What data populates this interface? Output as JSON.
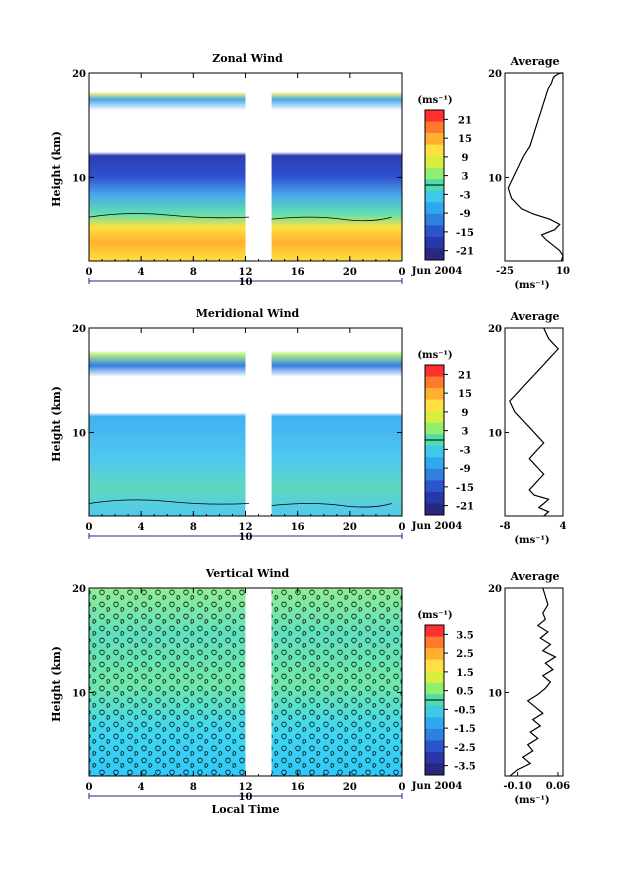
{
  "chart_data": [
    {
      "type": "heatmap",
      "title": "Zonal Wind",
      "ylabel": "Height (km)",
      "ylim": [
        2,
        20
      ],
      "xlim": [
        0,
        24
      ],
      "x_ticks": [
        "0",
        "4",
        "8",
        "12",
        "16",
        "20",
        "0"
      ],
      "y_ticks": [
        "20",
        "10"
      ],
      "date_label": "Jun 2004",
      "day_label": "10",
      "data_gap": [
        12,
        14
      ],
      "colorbar": {
        "unit_label": "(ms⁻¹)",
        "range": [
          -24,
          24
        ],
        "ticks": [
          "21",
          "15",
          "9",
          "3",
          "-3",
          "-9",
          "-15",
          "-21"
        ],
        "colors": [
          "#ff3030",
          "#ff7a2a",
          "#ffb030",
          "#ffe040",
          "#d8ee40",
          "#90ee70",
          "#50dca8",
          "#40c8e8",
          "#30a8f0",
          "#3080e0",
          "#2c54cc",
          "#2838a8",
          "#282880"
        ]
      },
      "profile": {
        "title": "Average",
        "xlim": [
          -25,
          10
        ],
        "x_ticks": [
          "-25",
          "10"
        ],
        "xlabel": "(ms⁻¹)",
        "x": [
          9,
          10,
          8,
          4,
          0,
          -3,
          5,
          8,
          2,
          -8,
          -15,
          -21,
          -23,
          -20,
          -17,
          -14,
          -12,
          -10,
          -9,
          -8,
          -7,
          -6,
          -5,
          -4,
          -3,
          -2,
          -1,
          0,
          1,
          3,
          4,
          5,
          6,
          7,
          8,
          9,
          10
        ],
        "y": [
          2,
          2.5,
          3,
          3.5,
          4,
          4.5,
          5,
          5.5,
          6,
          6.5,
          7,
          8,
          9,
          10,
          11,
          12,
          12.5,
          13,
          13.5,
          14,
          14.5,
          15,
          15.5,
          16,
          16.5,
          17,
          17.5,
          18,
          18.5,
          19,
          19.5,
          19.7,
          19.8,
          19.9,
          19.95,
          20,
          20
        ]
      }
    },
    {
      "type": "heatmap",
      "title": "Meridional Wind",
      "ylabel": "Height (km)",
      "ylim": [
        2,
        20
      ],
      "xlim": [
        0,
        24
      ],
      "x_ticks": [
        "0",
        "4",
        "8",
        "12",
        "16",
        "20",
        "0"
      ],
      "y_ticks": [
        "20",
        "10"
      ],
      "date_label": "Jun 2004",
      "day_label": "10",
      "data_gap": [
        12,
        14
      ],
      "colorbar": {
        "unit_label": "(ms⁻¹)",
        "range": [
          -24,
          24
        ],
        "ticks": [
          "21",
          "15",
          "9",
          "3",
          "-3",
          "-9",
          "-15",
          "-21"
        ],
        "colors": [
          "#ff3030",
          "#ff7a2a",
          "#ffb030",
          "#ffe040",
          "#d8ee40",
          "#90ee70",
          "#50dca8",
          "#40c8e8",
          "#30a8f0",
          "#3080e0",
          "#2c54cc",
          "#2838a8",
          "#282880"
        ]
      },
      "profile": {
        "title": "Average",
        "xlim": [
          -8,
          4
        ],
        "x_ticks": [
          "-8",
          "4"
        ],
        "xlabel": "(ms⁻¹)",
        "x": [
          0,
          1,
          -1,
          0,
          1,
          -2,
          -3,
          -2,
          -1,
          0,
          -1,
          -2,
          -3,
          -2,
          -1,
          0,
          -1,
          -2,
          -3,
          -4,
          -5,
          -6,
          -7,
          -6,
          -5,
          -4,
          -3,
          -2,
          -1,
          0,
          1,
          2,
          3,
          2,
          1,
          0
        ],
        "y": [
          2,
          2.4,
          2.8,
          3.2,
          3.6,
          4,
          4.5,
          5,
          5.5,
          6,
          6.5,
          7,
          7.5,
          8,
          8.5,
          9,
          9.5,
          10,
          10.5,
          11,
          11.5,
          12,
          13,
          13.5,
          14,
          14.5,
          15,
          15.5,
          16,
          16.5,
          17,
          17.5,
          18,
          18.5,
          19,
          20
        ]
      }
    },
    {
      "type": "heatmap",
      "title": "Vertical Wind",
      "ylabel": "Height (km)",
      "xlabel": "Local Time",
      "ylim": [
        2,
        20
      ],
      "xlim": [
        0,
        24
      ],
      "x_ticks": [
        "0",
        "4",
        "8",
        "12",
        "16",
        "20",
        "0"
      ],
      "y_ticks": [
        "20",
        "10"
      ],
      "date_label": "Jun 2004",
      "day_label": "10",
      "data_gap": [
        12,
        14
      ],
      "colorbar": {
        "unit_label": "(ms⁻¹)",
        "range": [
          -4,
          4
        ],
        "ticks": [
          "3.5",
          "2.5",
          "1.5",
          "0.5",
          "-0.5",
          "-1.5",
          "-2.5",
          "-3.5"
        ],
        "colors": [
          "#ff3030",
          "#ff7a2a",
          "#ffb030",
          "#ffe040",
          "#d8ee40",
          "#90ee70",
          "#50dca8",
          "#40c8e8",
          "#30a8f0",
          "#3080e0",
          "#2c54cc",
          "#2838a8",
          "#282880"
        ]
      },
      "profile": {
        "title": "Average",
        "xlim": [
          -0.15,
          0.08
        ],
        "x_ticks": [
          "-0.10",
          "0.06"
        ],
        "xlabel": "(ms⁻¹)",
        "x": [
          -0.13,
          -0.1,
          -0.05,
          -0.08,
          -0.04,
          -0.06,
          -0.02,
          -0.05,
          -0.01,
          -0.04,
          0.0,
          -0.03,
          -0.06,
          -0.02,
          0.01,
          0.03,
          0.0,
          0.04,
          0.01,
          0.05,
          0.0,
          0.03,
          -0.01,
          0.02,
          -0.02,
          0.01,
          0.0,
          0.02,
          0.0
        ],
        "y": [
          2,
          2.6,
          3.2,
          3.8,
          4.4,
          5,
          5.6,
          6.2,
          6.8,
          7.4,
          8,
          8.6,
          9.2,
          9.8,
          10.4,
          11,
          11.6,
          12.2,
          12.8,
          13.4,
          14,
          14.6,
          15.2,
          15.8,
          16.4,
          17,
          17.6,
          18.4,
          20
        ]
      }
    }
  ]
}
